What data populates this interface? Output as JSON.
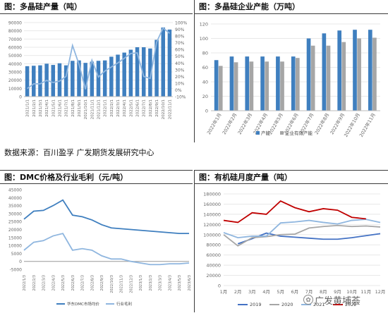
{
  "panels": {
    "p1_title": "图：多晶硅产量（吨）",
    "p2_title": "图：多晶硅企业产能（万吨）",
    "p3_title": "图：DMC价格及行业毛利（元/吨）",
    "p4_title": "图：有机硅月度产量（吨）"
  },
  "source": "数据来源：百川盈孚  广发期货发展研究中心",
  "watermark": "广发黄埔荟",
  "colors": {
    "blue": "#3f7fbf",
    "gray": "#a6a6a6",
    "lightblue": "#8fb6df",
    "red": "#c00000",
    "navy": "#4472c4"
  },
  "chart_data": [
    {
      "type": "bar",
      "title": "图：多晶硅产量（吨）",
      "categories": [
        "2021/1/1",
        "2021/2/1",
        "2021/3/1",
        "2021/4/1",
        "2021/5/1",
        "2021/6/1",
        "2021/7/1",
        "2021/8/1",
        "2021/9/1",
        "2021/10/1",
        "2021/11/1",
        "2021/12/1",
        "2022/1/1",
        "2022/2/1",
        "2022/3/1",
        "2022/4/1",
        "2022/5/1",
        "2022/6/1",
        "2022/7/1",
        "2022/8/1",
        "2022/9/1",
        "2022/10/1",
        "2022/11/1"
      ],
      "series": [
        {
          "values": [
            37000,
            37500,
            38000,
            40000,
            38500,
            40500,
            38000,
            43500,
            44000,
            41000,
            42500,
            43500,
            44000,
            48500,
            51000,
            53500,
            57000,
            60000,
            60000,
            58500,
            69000,
            84000,
            81500
          ]
        },
        {
          "values": [
            0.02,
            0.09,
            0.09,
            0.14,
            0.11,
            0.13,
            0.2,
            0.66,
            0.38,
            0.01,
            0.44,
            0.19,
            0.28,
            0.34,
            0.4,
            0.47,
            0.54,
            0.55,
            0.2,
            0.17,
            0.71,
            0.92,
            0.84
          ]
        }
      ],
      "ylim": [
        0,
        90000
      ],
      "yticks": [
        "0",
        "10000",
        "20000",
        "30000",
        "40000",
        "50000",
        "60000",
        "70000",
        "80000",
        "90000"
      ],
      "y2ticks": [
        "-10%",
        "0%",
        "10%",
        "20%",
        "30%",
        "40%",
        "50%",
        "60%",
        "70%",
        "80%",
        "90%",
        "100%"
      ]
    },
    {
      "type": "bar",
      "title": "图：多晶硅企业产能（万吨）",
      "categories": [
        "2022年1月",
        "2022年2月",
        "2022年3月",
        "2022年4月",
        "2022年5月",
        "2022年6月",
        "2022年7月",
        "2022年8月",
        "2022年9月",
        "2022年10月",
        "2022年11月"
      ],
      "series": [
        {
          "name": "产能",
          "values": [
            70,
            75,
            75,
            75,
            75,
            75,
            100,
            107,
            111,
            112,
            112
          ]
        },
        {
          "name": "企业有效产能",
          "values": [
            62,
            67,
            68,
            68,
            68,
            73,
            90,
            90,
            95,
            100,
            101
          ]
        }
      ],
      "ylim": [
        0,
        120
      ],
      "yticks": [
        "0",
        "20",
        "40",
        "60",
        "80",
        "100",
        "120"
      ]
    },
    {
      "type": "line",
      "title": "图：DMC价格及行业毛利（元/吨）",
      "categories": [
        "2022/1/3",
        "2022/2/3",
        "2022/3/3",
        "2022/4/3",
        "2022/5/3",
        "2022/6/3",
        "2022/7/3",
        "2022/8/3",
        "2022/9/3",
        "2022/10/3",
        "2022/11/3",
        "2022/12/3",
        "2023/1/3",
        "2023/2/3",
        "2023/3/3",
        "2023/4/3",
        "2023/5/3",
        "2023/6/3"
      ],
      "series": [
        {
          "name": "华东DMC市场均价",
          "values": [
            26500,
            31500,
            32000,
            35000,
            38500,
            29000,
            28000,
            26000,
            23000,
            21000,
            20500,
            20000,
            19500,
            19000,
            18500,
            18000,
            17500,
            17500
          ]
        },
        {
          "name": "行业毛利",
          "values": [
            7000,
            12000,
            13000,
            16000,
            17500,
            7000,
            8000,
            7000,
            3500,
            1500,
            1500,
            0,
            -1000,
            -2000,
            -2000,
            -1500,
            -1500,
            -1000
          ]
        }
      ],
      "ylim": [
        -5000,
        45000
      ],
      "yticks": [
        "-5000",
        "0",
        "5000",
        "10000",
        "15000",
        "20000",
        "25000",
        "30000",
        "35000",
        "40000",
        "45000"
      ]
    },
    {
      "type": "line",
      "title": "图：有机硅月度产量（吨）",
      "categories": [
        "1月",
        "2月",
        "3月",
        "4月",
        "5月",
        "6月",
        "7月",
        "8月",
        "9月",
        "10月",
        "11月",
        "12月"
      ],
      "series": [
        {
          "name": "2019",
          "values": [
            null,
            82000,
            92000,
            103000,
            97000,
            95000,
            93000,
            91000,
            91000,
            94000,
            98000,
            102000
          ]
        },
        {
          "name": "2020",
          "values": [
            100000,
            78000,
            94000,
            96000,
            100000,
            101000,
            113000,
            116000,
            118000,
            116000,
            117000,
            115000
          ]
        },
        {
          "name": "2021",
          "values": [
            104000,
            94000,
            97000,
            97000,
            123000,
            125000,
            128000,
            124000,
            121000,
            128000,
            130000,
            124000
          ]
        },
        {
          "name": "2022",
          "values": [
            128000,
            124000,
            143000,
            140000,
            166000,
            153000,
            145000,
            151000,
            148000,
            134000,
            131000,
            null
          ]
        }
      ],
      "ylim": [
        0,
        180000
      ],
      "yticks": [
        "0",
        "20000",
        "40000",
        "60000",
        "80000",
        "100000",
        "120000",
        "140000",
        "160000",
        "180000"
      ]
    }
  ]
}
